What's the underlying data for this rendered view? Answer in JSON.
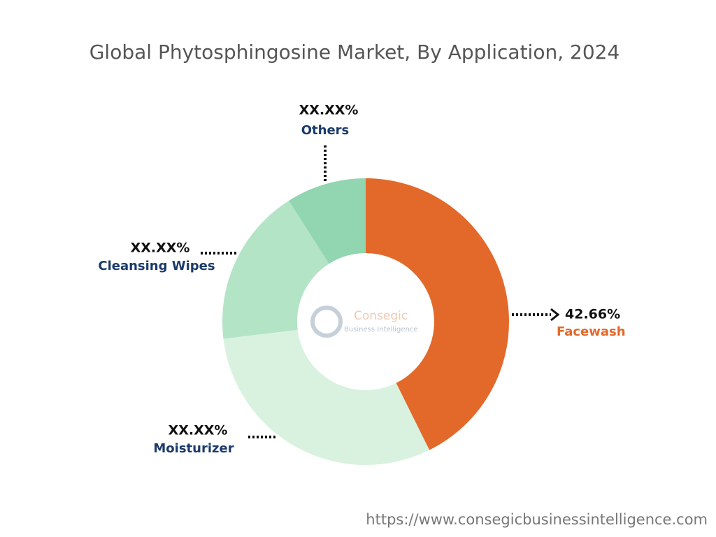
{
  "chart_data": {
    "type": "donut",
    "title": "Global Phytosphingosine Market, By Application, 2024",
    "categories": [
      "Facewash",
      "Moisturizer",
      "Cleansing Wipes",
      "Others"
    ],
    "values": [
      42.66,
      30.4,
      17.9,
      9.0
    ],
    "value_labels": [
      "42.66%",
      "XX.XX%",
      "XX.XX%",
      "XX.XX%"
    ],
    "colors": [
      "#e3692a",
      "#d9f2df",
      "#b3e4c6",
      "#92d5b1"
    ],
    "label_colors": [
      "#e3692a",
      "#1b3a6b",
      "#1b3a6b",
      "#1b3a6b"
    ],
    "watermark": {
      "name": "Consegic",
      "subtitle": "Business Intelligence"
    },
    "source": "https://www.consegicbusinessintelligence.com"
  }
}
